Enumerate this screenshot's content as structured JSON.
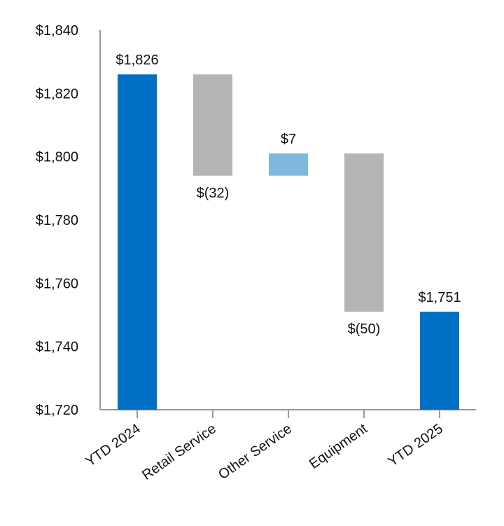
{
  "chart_data": {
    "type": "waterfall",
    "title": "",
    "xlabel": "",
    "ylabel": "",
    "ylim": [
      1720,
      1840
    ],
    "yticks": [
      1720,
      1740,
      1760,
      1780,
      1800,
      1820,
      1840
    ],
    "ytick_labels": [
      "$1,720",
      "$1,740",
      "$1,760",
      "$1,780",
      "$1,800",
      "$1,820",
      "$1,840"
    ],
    "grid": false,
    "categories": [
      "YTD 2024",
      "Retail Service",
      "Other Service",
      "Equipment",
      "YTD 2025"
    ],
    "bars": [
      {
        "kind": "total",
        "start": 1720,
        "end": 1826,
        "label": "$1,826",
        "color": "#0070C4"
      },
      {
        "kind": "decrease",
        "start": 1826,
        "end": 1794,
        "label": "$(32)",
        "color": "#B5B5B5"
      },
      {
        "kind": "increase",
        "start": 1794,
        "end": 1801,
        "label": "$7",
        "color": "#7FB7E0"
      },
      {
        "kind": "decrease",
        "start": 1801,
        "end": 1751,
        "label": "$(50)",
        "color": "#B5B5B5"
      },
      {
        "kind": "total",
        "start": 1720,
        "end": 1751,
        "label": "$1,751",
        "color": "#0070C4"
      }
    ],
    "axis_color": "#999999"
  }
}
